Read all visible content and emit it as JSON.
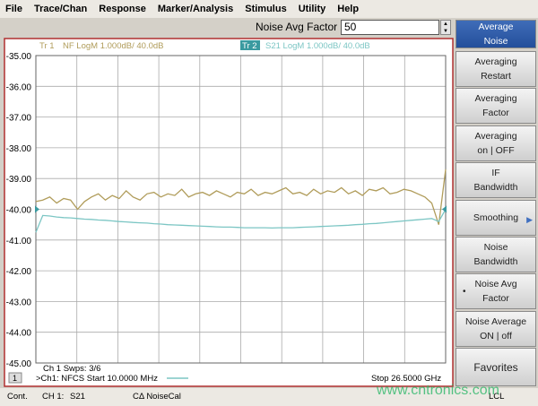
{
  "menu": [
    "File",
    "Trace/Chan",
    "Response",
    "Marker/Analysis",
    "Stimulus",
    "Utility",
    "Help"
  ],
  "entry": {
    "label": "Noise Avg Factor",
    "value": "50"
  },
  "chart_data": {
    "type": "line",
    "series": [
      {
        "name": "Tr 1",
        "label": "NF LogM 1.000dB/  40.0dB",
        "color": "#b09c5a",
        "values": [
          -39.75,
          -39.7,
          -39.6,
          -39.8,
          -39.65,
          -39.7,
          -40.0,
          -39.75,
          -39.6,
          -39.5,
          -39.7,
          -39.55,
          -39.65,
          -39.4,
          -39.6,
          -39.7,
          -39.5,
          -39.45,
          -39.6,
          -39.5,
          -39.55,
          -39.35,
          -39.6,
          -39.5,
          -39.45,
          -39.55,
          -39.4,
          -39.5,
          -39.6,
          -39.45,
          -39.5,
          -39.35,
          -39.55,
          -39.45,
          -39.5,
          -39.4,
          -39.3,
          -39.5,
          -39.45,
          -39.55,
          -39.35,
          -39.5,
          -39.4,
          -39.45,
          -39.3,
          -39.5,
          -39.4,
          -39.55,
          -39.35,
          -39.4,
          -39.3,
          -39.5,
          -39.45,
          -39.35,
          -39.4,
          -39.5,
          -39.6,
          -39.8,
          -40.5,
          -38.7
        ]
      },
      {
        "name": "Tr 2",
        "label": "S21 LogM 1.000dB/  40.0dB",
        "color": "#7cc6c4",
        "values": [
          -40.75,
          -40.2,
          -40.22,
          -40.25,
          -40.27,
          -40.28,
          -40.3,
          -40.32,
          -40.33,
          -40.35,
          -40.36,
          -40.38,
          -40.4,
          -40.41,
          -40.43,
          -40.44,
          -40.45,
          -40.47,
          -40.48,
          -40.5,
          -40.51,
          -40.52,
          -40.53,
          -40.54,
          -40.55,
          -40.56,
          -40.57,
          -40.58,
          -40.58,
          -40.59,
          -40.6,
          -40.6,
          -40.6,
          -40.6,
          -40.61,
          -40.6,
          -40.6,
          -40.6,
          -40.59,
          -40.58,
          -40.57,
          -40.56,
          -40.55,
          -40.54,
          -40.53,
          -40.52,
          -40.5,
          -40.49,
          -40.47,
          -40.46,
          -40.44,
          -40.42,
          -40.4,
          -40.38,
          -40.36,
          -40.34,
          -40.32,
          -40.3,
          -40.4,
          -40.0
        ]
      }
    ],
    "ylim": [
      -45,
      -35
    ],
    "yticks": [
      {
        "value": -35,
        "label": "-35.00"
      },
      {
        "value": -36,
        "label": "-36.00"
      },
      {
        "value": -37,
        "label": "-37.00"
      },
      {
        "value": -38,
        "label": "-38.00"
      },
      {
        "value": -39,
        "label": "-39.00"
      },
      {
        "value": -40,
        "label": "-40.00"
      },
      {
        "value": -41,
        "label": "-41.00"
      },
      {
        "value": -42,
        "label": "-42.00"
      },
      {
        "value": -43,
        "label": "-43.00"
      },
      {
        "value": -44,
        "label": "-44.00"
      },
      {
        "value": -45,
        "label": "-45.00"
      }
    ],
    "grid": true,
    "sweep_info": "Ch 1  Swps: 3/6",
    "channel": "1",
    "start": ">Ch1: NFCS Start  10.0000 MHz",
    "stop": "Stop  26.5000 GHz"
  },
  "softkeys": [
    [
      "Average",
      "Noise"
    ],
    [
      "Averaging",
      "Restart"
    ],
    [
      "Averaging",
      "Factor"
    ],
    [
      "Averaging",
      "on | OFF"
    ],
    [
      "IF",
      "Bandwidth"
    ],
    [
      "Smoothing"
    ],
    [
      "Noise",
      "Bandwidth"
    ],
    [
      "Noise Avg",
      "Factor"
    ],
    [
      "Noise Average",
      "ON | off"
    ],
    [
      "Favorites"
    ]
  ],
  "status": [
    "Cont.",
    "CH 1:",
    "S21",
    "CΔ NoiseCal",
    "LCL"
  ],
  "watermark": "www.cntronics.com"
}
